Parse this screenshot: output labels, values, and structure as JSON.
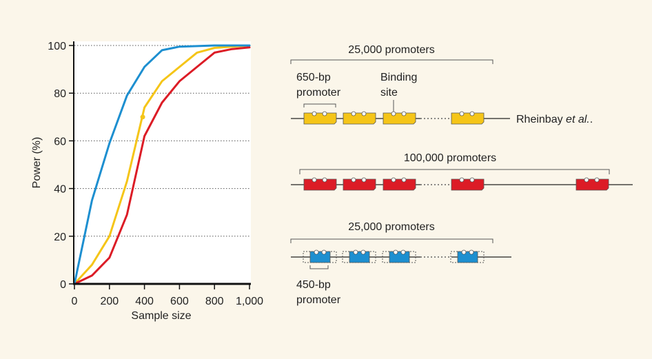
{
  "chart_data": {
    "type": "line",
    "title": "",
    "xlabel": "Sample size",
    "ylabel": "Power (%)",
    "xlim": [
      0,
      1000
    ],
    "ylim": [
      0,
      100
    ],
    "x_ticks": [
      0,
      200,
      400,
      600,
      800,
      1000
    ],
    "x_tick_labels": [
      "0",
      "200",
      "400",
      "600",
      "800",
      "1,000"
    ],
    "y_ticks": [
      0,
      20,
      40,
      60,
      80,
      100
    ],
    "y_tick_labels": [
      "0",
      "20",
      "40",
      "60",
      "80",
      "100"
    ],
    "grid": "horizontal dotted",
    "series": [
      {
        "name": "Rheinbay et al. (25,000 promoters, 650-bp)",
        "color": "#f5c518",
        "points": [
          [
            0,
            0
          ],
          [
            100,
            8
          ],
          [
            200,
            20
          ],
          [
            300,
            43
          ],
          [
            400,
            74
          ],
          [
            500,
            85
          ],
          [
            600,
            91
          ],
          [
            700,
            97
          ],
          [
            800,
            99
          ],
          [
            1000,
            100
          ]
        ],
        "marker": {
          "x": 390,
          "y": 70
        }
      },
      {
        "name": "100,000 promoters",
        "color": "#dc1c26",
        "points": [
          [
            0,
            0
          ],
          [
            100,
            3.5
          ],
          [
            200,
            11
          ],
          [
            300,
            29
          ],
          [
            400,
            62
          ],
          [
            500,
            76
          ],
          [
            600,
            85
          ],
          [
            700,
            91
          ],
          [
            800,
            97
          ],
          [
            900,
            98.5
          ],
          [
            1000,
            99.2
          ]
        ]
      },
      {
        "name": "25,000 promoters, 450-bp",
        "color": "#1d8fd0",
        "points": [
          [
            0,
            0
          ],
          [
            100,
            35
          ],
          [
            200,
            59
          ],
          [
            300,
            79
          ],
          [
            400,
            91
          ],
          [
            500,
            98
          ],
          [
            600,
            99.5
          ],
          [
            800,
            100
          ],
          [
            1000,
            100
          ]
        ]
      }
    ]
  },
  "diagram": {
    "rows": [
      {
        "count_label": "25,000 promoters",
        "color": "#f5c518",
        "side_label_prefix": "Rheinbay ",
        "side_label_italic": "et al.",
        "side_label_suffix": "."
      },
      {
        "count_label": "100,000 promoters",
        "color": "#dc1c26"
      },
      {
        "count_label": "25,000 promoters",
        "color": "#1d8fd0"
      }
    ],
    "annotation_650_line1": "650-bp",
    "annotation_650_line2": "promoter",
    "annotation_binding_line1": "Binding",
    "annotation_binding_line2": "site",
    "annotation_450_line1": "450-bp",
    "annotation_450_line2": "promoter"
  }
}
